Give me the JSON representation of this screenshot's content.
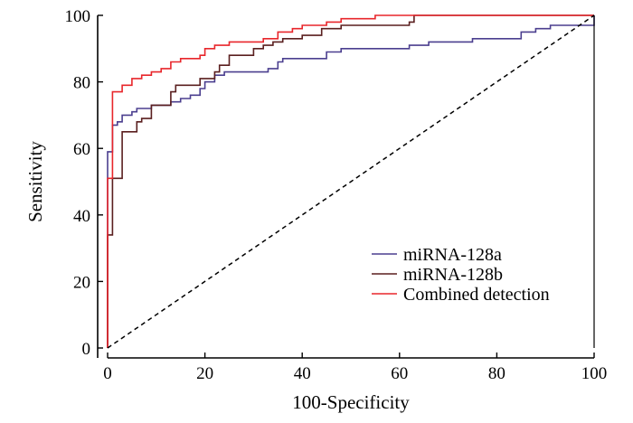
{
  "chart_data": {
    "type": "line",
    "title": "",
    "xlabel": "100-Specificity",
    "ylabel": "Sensitivity",
    "xlim": [
      0,
      100
    ],
    "ylim": [
      0,
      100
    ],
    "x_ticks": [
      0,
      20,
      40,
      60,
      80,
      100
    ],
    "y_ticks": [
      0,
      20,
      40,
      60,
      80,
      100
    ],
    "grid": false,
    "legend_position": "bottom-right",
    "series": [
      {
        "name": "miRNA-128a",
        "color": "#4b3f8f",
        "step": true,
        "points": [
          [
            0,
            0
          ],
          [
            0,
            59
          ],
          [
            1,
            59
          ],
          [
            1,
            67
          ],
          [
            2,
            67
          ],
          [
            2,
            68
          ],
          [
            3,
            68
          ],
          [
            3,
            70
          ],
          [
            5,
            70
          ],
          [
            5,
            71
          ],
          [
            6,
            71
          ],
          [
            6,
            72
          ],
          [
            9,
            72
          ],
          [
            9,
            73
          ],
          [
            13,
            73
          ],
          [
            13,
            74
          ],
          [
            15,
            74
          ],
          [
            15,
            75
          ],
          [
            17,
            75
          ],
          [
            17,
            76
          ],
          [
            19,
            76
          ],
          [
            19,
            78
          ],
          [
            20,
            78
          ],
          [
            20,
            80
          ],
          [
            22,
            80
          ],
          [
            22,
            82
          ],
          [
            24,
            82
          ],
          [
            24,
            83
          ],
          [
            33,
            83
          ],
          [
            33,
            84
          ],
          [
            35,
            84
          ],
          [
            35,
            86
          ],
          [
            36,
            86
          ],
          [
            36,
            87
          ],
          [
            45,
            87
          ],
          [
            45,
            89
          ],
          [
            48,
            89
          ],
          [
            48,
            90
          ],
          [
            62,
            90
          ],
          [
            62,
            91
          ],
          [
            66,
            91
          ],
          [
            66,
            92
          ],
          [
            75,
            92
          ],
          [
            75,
            93
          ],
          [
            85,
            93
          ],
          [
            85,
            95
          ],
          [
            88,
            95
          ],
          [
            88,
            96
          ],
          [
            91,
            96
          ],
          [
            91,
            97
          ],
          [
            100,
            97
          ],
          [
            100,
            100
          ]
        ]
      },
      {
        "name": "miRNA-128b",
        "color": "#5a1f1f",
        "step": true,
        "points": [
          [
            0,
            0
          ],
          [
            0,
            34
          ],
          [
            1,
            34
          ],
          [
            1,
            51
          ],
          [
            3,
            51
          ],
          [
            3,
            65
          ],
          [
            6,
            65
          ],
          [
            6,
            68
          ],
          [
            7,
            68
          ],
          [
            7,
            69
          ],
          [
            9,
            69
          ],
          [
            9,
            73
          ],
          [
            13,
            73
          ],
          [
            13,
            77
          ],
          [
            14,
            77
          ],
          [
            14,
            79
          ],
          [
            19,
            79
          ],
          [
            19,
            81
          ],
          [
            22,
            81
          ],
          [
            22,
            83
          ],
          [
            23,
            83
          ],
          [
            23,
            85
          ],
          [
            25,
            85
          ],
          [
            25,
            88
          ],
          [
            30,
            88
          ],
          [
            30,
            90
          ],
          [
            32,
            90
          ],
          [
            32,
            91
          ],
          [
            34,
            91
          ],
          [
            34,
            92
          ],
          [
            36,
            92
          ],
          [
            36,
            93
          ],
          [
            40,
            93
          ],
          [
            40,
            94
          ],
          [
            44,
            94
          ],
          [
            44,
            96
          ],
          [
            48,
            96
          ],
          [
            48,
            97
          ],
          [
            62,
            97
          ],
          [
            62,
            98
          ],
          [
            63,
            98
          ],
          [
            63,
            100
          ],
          [
            100,
            100
          ]
        ]
      },
      {
        "name": "Combined detection",
        "color": "#e8262b",
        "step": true,
        "points": [
          [
            0,
            0
          ],
          [
            0,
            51
          ],
          [
            1,
            51
          ],
          [
            1,
            77
          ],
          [
            3,
            77
          ],
          [
            3,
            79
          ],
          [
            5,
            79
          ],
          [
            5,
            81
          ],
          [
            7,
            81
          ],
          [
            7,
            82
          ],
          [
            9,
            82
          ],
          [
            9,
            83
          ],
          [
            11,
            83
          ],
          [
            11,
            84
          ],
          [
            13,
            84
          ],
          [
            13,
            86
          ],
          [
            15,
            86
          ],
          [
            15,
            87
          ],
          [
            19,
            87
          ],
          [
            19,
            88
          ],
          [
            20,
            88
          ],
          [
            20,
            90
          ],
          [
            22,
            90
          ],
          [
            22,
            91
          ],
          [
            25,
            91
          ],
          [
            25,
            92
          ],
          [
            32,
            92
          ],
          [
            32,
            93
          ],
          [
            35,
            93
          ],
          [
            35,
            95
          ],
          [
            38,
            95
          ],
          [
            38,
            96
          ],
          [
            40,
            96
          ],
          [
            40,
            97
          ],
          [
            45,
            97
          ],
          [
            45,
            98
          ],
          [
            48,
            98
          ],
          [
            48,
            99
          ],
          [
            55,
            99
          ],
          [
            55,
            100
          ],
          [
            100,
            100
          ]
        ]
      },
      {
        "name": "",
        "color": "#000000",
        "dashed": true,
        "points": [
          [
            0,
            0
          ],
          [
            100,
            100
          ]
        ]
      }
    ]
  }
}
